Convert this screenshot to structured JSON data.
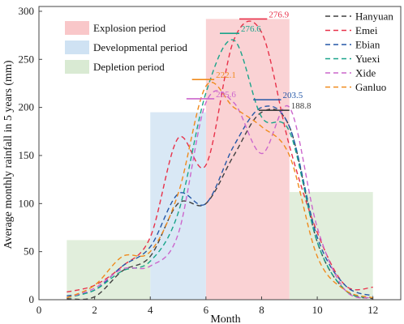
{
  "chart_data": {
    "type": "line",
    "xlabel": "Month",
    "ylabel": "Average monthly rainfall in 5 years (mm)",
    "xlim": [
      0,
      13
    ],
    "ylim": [
      0,
      305
    ],
    "xticks": [
      0,
      2,
      4,
      6,
      8,
      10,
      12
    ],
    "yticks": [
      0,
      50,
      100,
      150,
      200,
      250,
      300
    ],
    "x_tick_labels": [
      "0",
      "2",
      "4",
      "6",
      "8",
      "10",
      "12"
    ],
    "y_tick_labels": [
      "0",
      "50",
      "100",
      "150",
      "200",
      "250",
      "300"
    ],
    "bands": [
      {
        "label": "Explosion period",
        "color": "#f9c7c9",
        "x0": 6,
        "x1": 9,
        "y": 292
      },
      {
        "label": "Developmental period",
        "color": "#cfe2f3",
        "x0": 4,
        "x1": 6,
        "y": 195
      },
      {
        "label": "Depletion period",
        "color": "#d9ead3",
        "x0": 1,
        "x1": 4,
        "y": 62
      },
      {
        "label": "",
        "color": "#d9ead3",
        "x0": 9,
        "x1": 12,
        "y": 112
      }
    ],
    "series": [
      {
        "name": "Hanyuan",
        "color": "#404040",
        "x": [
          1,
          2,
          3,
          4,
          5,
          6,
          7,
          8,
          9,
          10,
          11,
          12
        ],
        "values": [
          1,
          3,
          30,
          45,
          100,
          100,
          150,
          195,
          180,
          60,
          10,
          1
        ]
      },
      {
        "name": "Emei",
        "color": "#e8324a",
        "x": [
          1,
          2,
          3,
          4,
          5,
          6,
          7,
          8,
          9,
          10,
          11,
          12
        ],
        "values": [
          8,
          15,
          35,
          65,
          168,
          140,
          270,
          278,
          160,
          70,
          15,
          13
        ]
      },
      {
        "name": "Ebian",
        "color": "#2457a7",
        "x": [
          1,
          2,
          3,
          4,
          5,
          6,
          7,
          8,
          9,
          10,
          11,
          12
        ],
        "values": [
          4,
          10,
          35,
          55,
          110,
          100,
          160,
          200,
          180,
          65,
          15,
          4
        ]
      },
      {
        "name": "Yuexi",
        "color": "#1aa48a",
        "x": [
          1,
          2,
          3,
          4,
          5,
          6,
          7,
          8,
          9,
          10,
          11,
          12
        ],
        "values": [
          2,
          10,
          30,
          40,
          90,
          215,
          270,
          190,
          175,
          60,
          10,
          2
        ]
      },
      {
        "name": "Xide",
        "color": "#cc66cc",
        "x": [
          1,
          2,
          3,
          4,
          5,
          6,
          7,
          8,
          9,
          10,
          11,
          12
        ],
        "values": [
          2,
          12,
          32,
          35,
          68,
          205,
          205,
          152,
          200,
          75,
          10,
          2
        ]
      },
      {
        "name": "Ganluo",
        "color": "#f08a1c",
        "x": [
          1,
          2,
          3,
          4,
          5,
          6,
          7,
          8,
          9,
          10,
          11,
          12
        ],
        "values": [
          2,
          15,
          45,
          50,
          110,
          222,
          200,
          180,
          150,
          45,
          10,
          2
        ]
      }
    ],
    "annotations": [
      {
        "text": "276.9",
        "color": "#e8324a",
        "x0": 7.2,
        "x1": 8.2,
        "y": 292
      },
      {
        "text": "276.6",
        "color": "#1aa48a",
        "x0": 6.5,
        "x1": 7.2,
        "y": 277
      },
      {
        "text": "222.1",
        "color": "#f08a1c",
        "x0": 5.5,
        "x1": 6.3,
        "y": 229
      },
      {
        "text": "205.6",
        "color": "#cc66cc",
        "x0": 5.3,
        "x1": 6.3,
        "y": 209
      },
      {
        "text": "203.5",
        "color": "#2457a7",
        "x0": 7.7,
        "x1": 8.7,
        "y": 208
      },
      {
        "text": "188.8",
        "color": "#404040",
        "x0": 7.9,
        "x1": 9.0,
        "y": 197
      }
    ]
  }
}
